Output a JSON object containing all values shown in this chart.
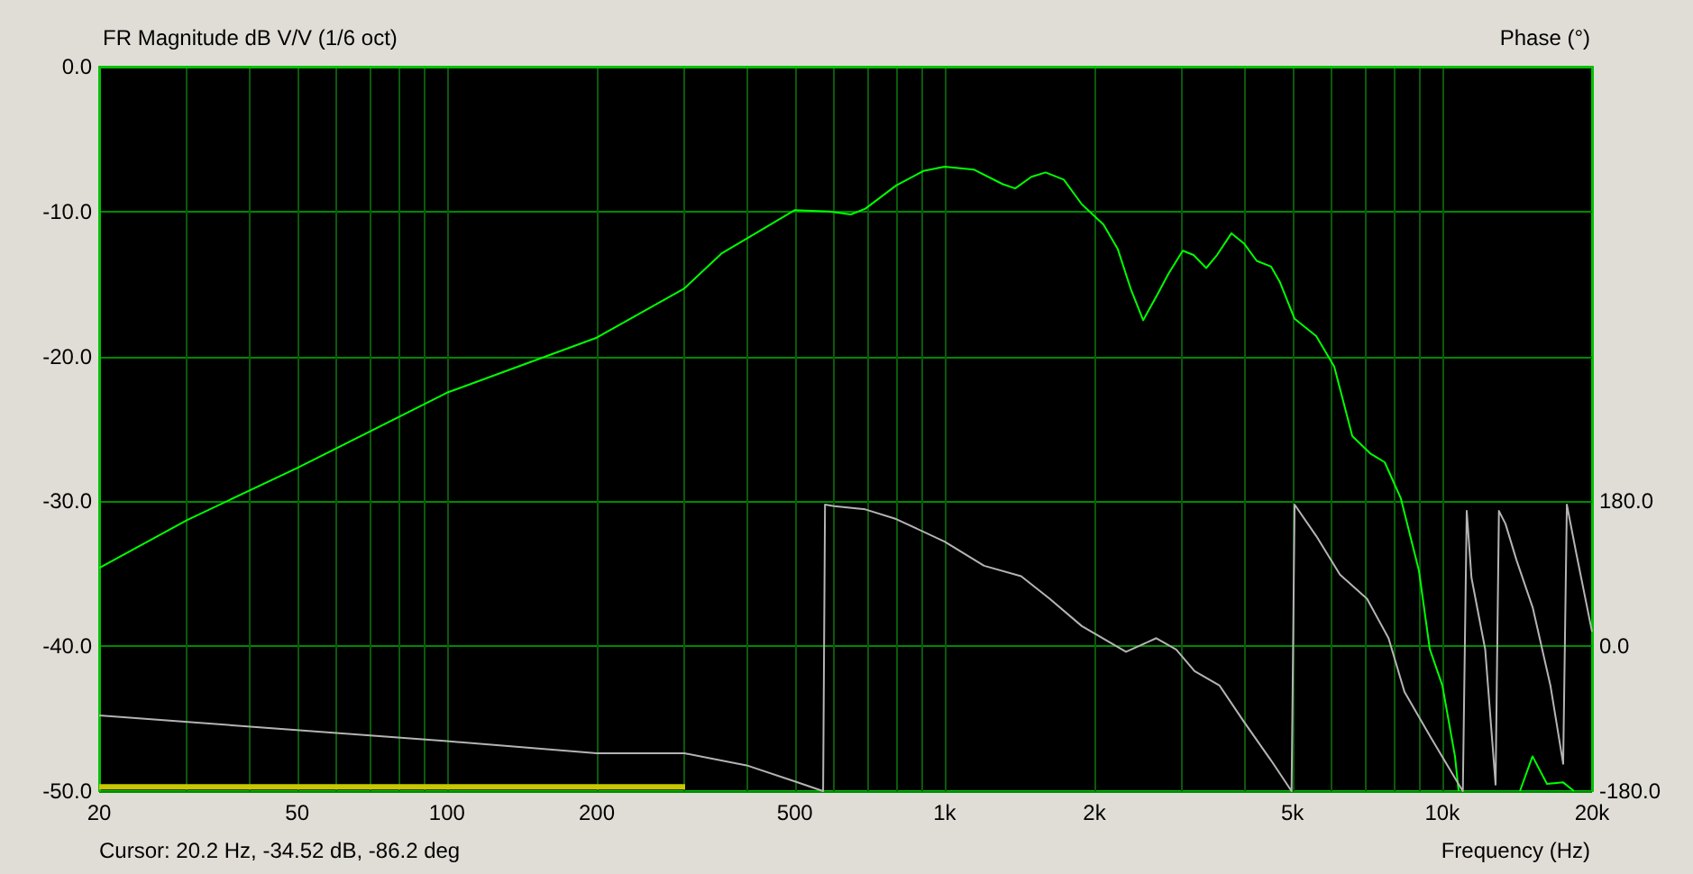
{
  "chart_data": {
    "type": "line",
    "title": "FR Magnitude dB V/V (1/6 oct)",
    "xlabel": "Frequency (Hz)",
    "y2label": "Phase (°)",
    "annotations": [
      "Cursor: 20.2 Hz, -34.52 dB, -86.2 deg"
    ],
    "log": "x",
    "grid": true,
    "marker": "none",
    "xlim": [
      20,
      20000
    ],
    "ylim": [
      -50,
      0
    ],
    "y2lim": [
      -180,
      720
    ],
    "xticks": [
      {
        "value": 20,
        "label": "20"
      },
      {
        "value": 30,
        "label": null
      },
      {
        "value": 40,
        "label": null
      },
      {
        "value": 50,
        "label": "50"
      },
      {
        "value": 60,
        "label": null
      },
      {
        "value": 70,
        "label": null
      },
      {
        "value": 80,
        "label": null
      },
      {
        "value": 90,
        "label": null
      },
      {
        "value": 100,
        "label": "100"
      },
      {
        "value": 200,
        "label": "200"
      },
      {
        "value": 300,
        "label": null
      },
      {
        "value": 400,
        "label": null
      },
      {
        "value": 500,
        "label": "500"
      },
      {
        "value": 600,
        "label": null
      },
      {
        "value": 700,
        "label": null
      },
      {
        "value": 800,
        "label": null
      },
      {
        "value": 900,
        "label": null
      },
      {
        "value": 1000,
        "label": "1k"
      },
      {
        "value": 2000,
        "label": "2k"
      },
      {
        "value": 3000,
        "label": null
      },
      {
        "value": 4000,
        "label": null
      },
      {
        "value": 5000,
        "label": "5k"
      },
      {
        "value": 6000,
        "label": null
      },
      {
        "value": 7000,
        "label": null
      },
      {
        "value": 8000,
        "label": null
      },
      {
        "value": 9000,
        "label": null
      },
      {
        "value": 10000,
        "label": "10k"
      },
      {
        "value": 20000,
        "label": "20k"
      }
    ],
    "yticks": [
      {
        "value": -50,
        "label": "-50.0"
      },
      {
        "value": -40,
        "label": "-40.0"
      },
      {
        "value": -30,
        "label": "-30.0"
      },
      {
        "value": -20,
        "label": "-20.0"
      },
      {
        "value": -10,
        "label": "-10.0"
      },
      {
        "value": 0,
        "label": "0.0"
      }
    ],
    "y2ticks": [
      {
        "value": -180,
        "label": "-180.0"
      },
      {
        "value": 0,
        "label": "0.0"
      },
      {
        "value": 180,
        "label": "180.0"
      }
    ],
    "series": [
      {
        "color": "#00ff00",
        "x": [
          20,
          30,
          50,
          100,
          200,
          300,
          356,
          500,
          587,
          648,
          693,
          799,
          906,
          1000,
          1144,
          1307,
          1386,
          1494,
          1596,
          1736,
          1887,
          2086,
          2229,
          2364,
          2506,
          2679,
          2816,
          3010,
          3164,
          3355,
          3527,
          3771,
          3996,
          4238,
          4531,
          4723,
          5050,
          5582,
          6066,
          6596,
          7168,
          7662,
          8258,
          8980,
          9440,
          10004,
          10608,
          10788,
          12500,
          14326,
          15186,
          16236,
          17500,
          18400
        ],
        "values": [
          -34.6,
          -31.3,
          -27.7,
          -22.5,
          -18.7,
          -15.3,
          -12.9,
          -9.9,
          -10.0,
          -10.2,
          -9.8,
          -8.2,
          -7.2,
          -6.9,
          -7.1,
          -8.1,
          -8.4,
          -7.6,
          -7.3,
          -7.8,
          -9.5,
          -10.9,
          -12.6,
          -15.3,
          -17.5,
          -15.7,
          -14.3,
          -12.7,
          -13.0,
          -13.9,
          -13.0,
          -11.5,
          -12.2,
          -13.4,
          -13.8,
          -14.9,
          -17.4,
          -18.6,
          -20.7,
          -25.5,
          -26.7,
          -27.3,
          -29.8,
          -34.8,
          -40.2,
          -42.7,
          -47.6,
          -50,
          null,
          -50,
          -47.6,
          -49.5,
          -49.4,
          -50
        ]
      },
      {
        "color": "#b4b4b4",
        "axis": "y2",
        "x": [
          20,
          100,
          200,
          300,
          400,
          500,
          570,
          575,
          600,
          693,
          799,
          1000,
          1200,
          1425,
          1626,
          1887,
          2315,
          2663,
          2920,
          3180,
          3570,
          3996,
          4531,
          4980,
          5050,
          5582,
          6230,
          7060,
          7800,
          8400,
          9480,
          10900,
          11000,
          11200,
          11450,
          12200,
          12800,
          13000,
          13400,
          14100,
          15200,
          16500,
          17500,
          17800,
          18600,
          20000
        ],
        "values": [
          -86,
          -118,
          -133,
          -133,
          -148,
          -168,
          -180,
          176,
          174,
          170,
          158,
          130,
          100,
          87,
          59,
          25,
          -7,
          10,
          -4,
          -31,
          -49,
          -94,
          -142,
          -180,
          176,
          137,
          89,
          59,
          10,
          -57,
          -113,
          -176,
          -180,
          168,
          85,
          -4,
          -172,
          168,
          152,
          107,
          48,
          -49,
          -146,
          176,
          115,
          18
        ]
      },
      {
        "color": "#c8c800",
        "x": [
          20,
          301
        ],
        "values": [
          -49.7,
          -49.7
        ]
      }
    ]
  }
}
